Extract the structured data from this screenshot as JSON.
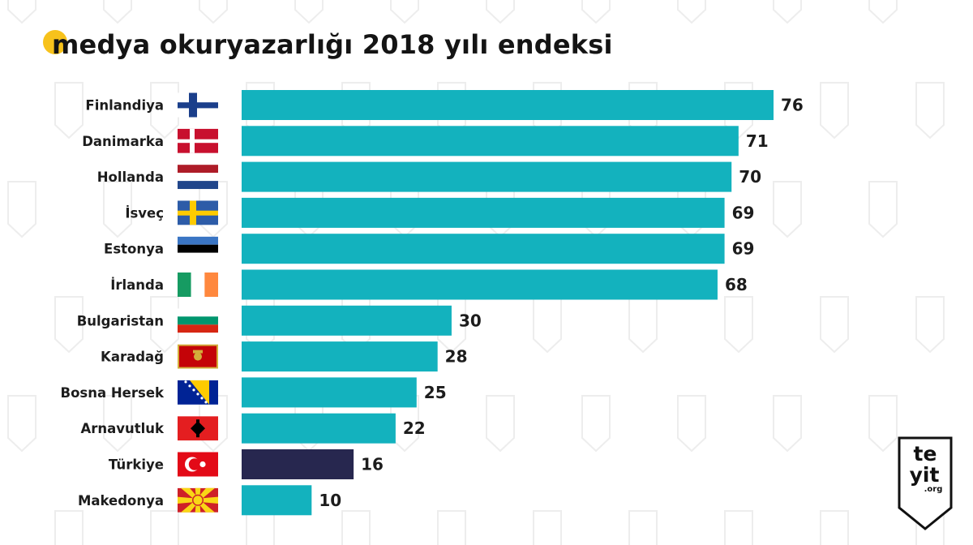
{
  "title": "medya okuryazarlığı 2018 yılı endeksi",
  "colors": {
    "bar": "#13b2be",
    "highlight_bar": "#27274f",
    "title_dot": "#f7c21b",
    "text": "#1c1c1c"
  },
  "logo": {
    "line1": "te",
    "line2": "yit",
    "line3": ".org"
  },
  "chart_data": {
    "type": "bar",
    "orientation": "horizontal",
    "title": "medya okuryazarlığı 2018 yılı endeksi",
    "xlabel": "",
    "ylabel": "",
    "grid": false,
    "legend": "none",
    "categories": [
      "Finlandiya",
      "Danimarka",
      "Hollanda",
      "İsveç",
      "Estonya",
      "İrlanda",
      "Bulgaristan",
      "Karadağ",
      "Bosna Hersek",
      "Arnavutluk",
      "Türkiye",
      "Makedonya"
    ],
    "values": [
      76,
      71,
      70,
      69,
      69,
      68,
      30,
      28,
      25,
      22,
      16,
      10
    ],
    "highlight": "Türkiye",
    "flags": [
      "finland-flag-icon",
      "denmark-flag-icon",
      "netherlands-flag-icon",
      "sweden-flag-icon",
      "estonia-flag-icon",
      "ireland-flag-icon",
      "bulgaria-flag-icon",
      "montenegro-flag-icon",
      "bosnia-flag-icon",
      "albania-flag-icon",
      "turkey-flag-icon",
      "macedonia-flag-icon"
    ]
  }
}
